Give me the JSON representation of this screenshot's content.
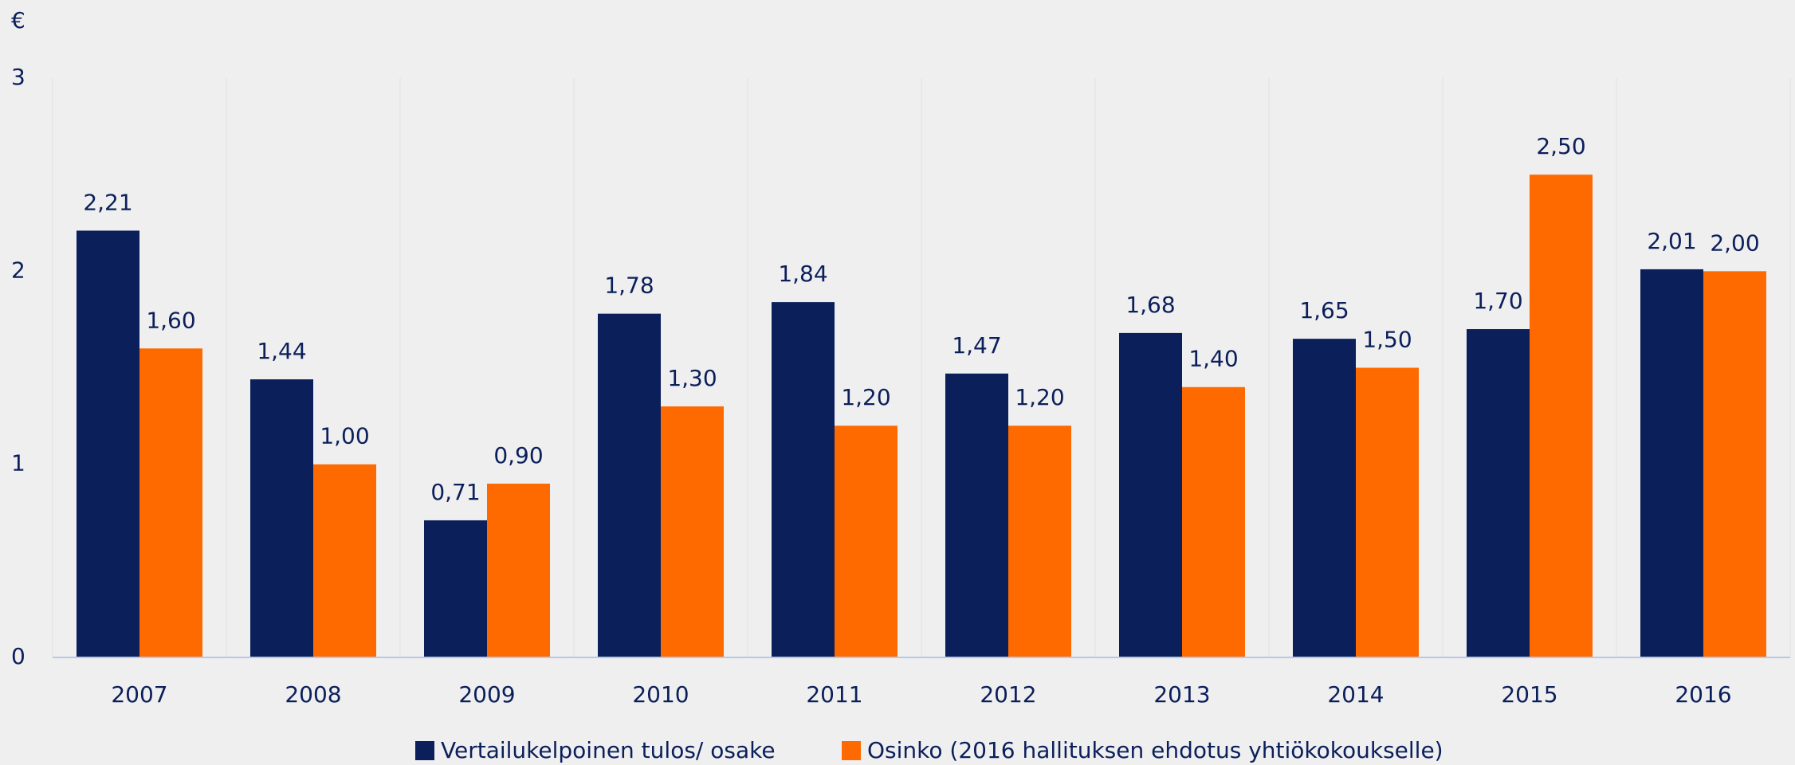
{
  "chart_data": {
    "type": "bar",
    "y_label": "€",
    "categories": [
      "2007",
      "2008",
      "2009",
      "2010",
      "2011",
      "2012",
      "2013",
      "2014",
      "2015",
      "2016"
    ],
    "series": [
      {
        "name": "Vertailukelpoinen tulos/ osake",
        "color": "#0b1f5b",
        "values": [
          2.21,
          1.44,
          0.71,
          1.78,
          1.84,
          1.47,
          1.68,
          1.65,
          1.7,
          2.01
        ],
        "value_labels": [
          "2,21",
          "1,44",
          "0,71",
          "1,78",
          "1,84",
          "1,47",
          "1,68",
          "1,65",
          "1,70",
          "2,01"
        ]
      },
      {
        "name": "Osinko (2016 hallituksen ehdotus yhtiökokoukselle)",
        "color": "#ff6a00",
        "values": [
          1.6,
          1.0,
          0.9,
          1.3,
          1.2,
          1.2,
          1.4,
          1.5,
          2.5,
          2.0
        ],
        "value_labels": [
          "1,60",
          "1,00",
          "0,90",
          "1,30",
          "1,20",
          "1,20",
          "1,40",
          "1,50",
          "2,50",
          "2,00"
        ]
      }
    ],
    "ylim": [
      0,
      3
    ],
    "yticks": [
      0,
      1,
      2,
      3
    ],
    "grid": false
  }
}
